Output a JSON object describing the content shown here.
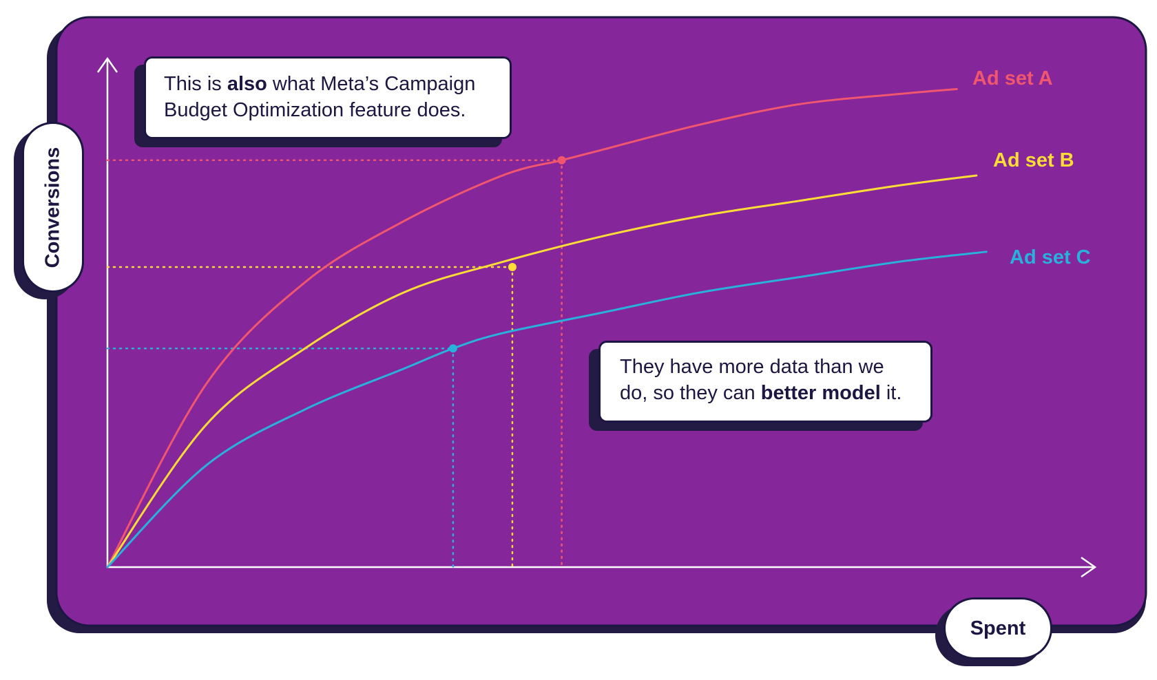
{
  "colors": {
    "panel": "#85269a",
    "panel_shadow": "#241b45",
    "axis": "#ffffff",
    "ad_set_a": "#f0576e",
    "ad_set_b": "#ffdd36",
    "ad_set_c": "#29b1dd"
  },
  "annotations": {
    "top": {
      "pre": "This is ",
      "bold": "also",
      "post": " what Meta’s Campaign Budget Optimization feature does."
    },
    "middle": {
      "pre": "They have more data than we do, so they can ",
      "bold": "better model",
      "post": " it."
    }
  },
  "chart_data": {
    "type": "line",
    "xlabel": "Spent",
    "ylabel": "Conversions",
    "ticks_shown": false,
    "grid": false,
    "legend": "inline labels at line ends",
    "xlim": [
      0,
      100
    ],
    "ylim": [
      0,
      100
    ],
    "series": [
      {
        "name": "Ad set A",
        "color": "#f0576e",
        "x": [
          0,
          10,
          20,
          30,
          40,
          46,
          50,
          60,
          70,
          80,
          86
        ],
        "y": [
          0,
          36,
          56,
          68,
          77,
          80,
          82,
          87,
          91,
          93,
          94
        ],
        "highlight": {
          "x": 46,
          "y": 80
        }
      },
      {
        "name": "Ad set B",
        "color": "#ffdd36",
        "x": [
          0,
          10,
          20,
          30,
          40,
          50,
          60,
          70,
          80,
          88
        ],
        "y": [
          0,
          28,
          43,
          54,
          60,
          65,
          69,
          72,
          75,
          77
        ],
        "highlight": {
          "x": 41,
          "y": 59
        }
      },
      {
        "name": "Ad set C",
        "color": "#29b1dd",
        "x": [
          0,
          10,
          20,
          30,
          35,
          40,
          50,
          60,
          70,
          80,
          89
        ],
        "y": [
          0,
          20,
          31,
          39,
          43,
          46,
          50,
          54,
          57,
          60,
          62
        ],
        "highlight": {
          "x": 35,
          "y": 43
        }
      }
    ]
  }
}
